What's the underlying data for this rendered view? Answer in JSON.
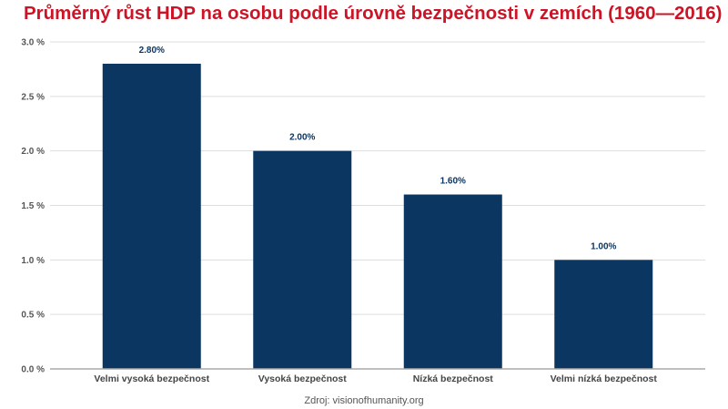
{
  "chart_data": {
    "type": "bar",
    "title": "Průměrný růst HDP na osobu podle úrovně bezpečnosti v zemích (1960—2016)",
    "categories": [
      "Velmi vysoká bezpečnost",
      "Vysoká bezpečnost",
      "Nízká bezpečnost",
      "Velmi nízká bezpečnost"
    ],
    "values": [
      2.8,
      2.0,
      1.6,
      1.0
    ],
    "data_labels": [
      "2.80%",
      "2.00%",
      "1.60%",
      "1.00%"
    ],
    "ylim": [
      0,
      3.0
    ],
    "yticks": [
      "0.0 %",
      "0.5 %",
      "1.0 %",
      "1.5 %",
      "2.0 %",
      "2.5 %",
      "3.0 %"
    ],
    "xlabel": "",
    "ylabel": "",
    "grid": true,
    "legend": "none",
    "bar_color": "#0b3662",
    "title_color": "#cc1426",
    "source": "Zdroj: visionofhumanity.org"
  }
}
